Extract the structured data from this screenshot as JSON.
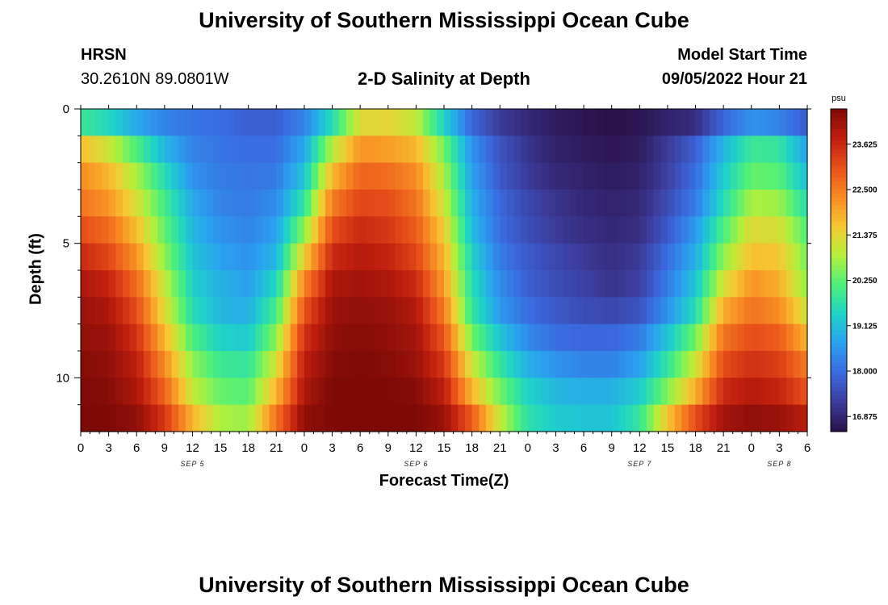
{
  "page": {
    "title": "University of Southern Mississippi Ocean Cube",
    "footer_title": "University of Southern Mississippi Ocean Cube",
    "station_name": "HRSN",
    "station_coords": "30.2610N  89.0801W",
    "subtitle": "2-D Salinity at Depth",
    "model_start_label": "Model Start Time",
    "model_start_value": "09/05/2022 Hour 21"
  },
  "chart_data": {
    "type": "heatmap",
    "title": "2-D Salinity at Depth",
    "xlabel": "Forecast Time(Z)",
    "ylabel": "Depth (ft)",
    "x_tick_labels": [
      "0",
      "3",
      "6",
      "9",
      "12",
      "15",
      "18",
      "21",
      "0",
      "3",
      "6",
      "9",
      "12",
      "15",
      "18",
      "21",
      "0",
      "3",
      "6",
      "9",
      "12",
      "15",
      "18",
      "21",
      "0",
      "3",
      "6"
    ],
    "x_hours_range": [
      0,
      78
    ],
    "day_labels": [
      {
        "label": "SEP 5",
        "hour": 12
      },
      {
        "label": "SEP 6",
        "hour": 36
      },
      {
        "label": "SEP 7",
        "hour": 60
      },
      {
        "label": "SEP 8",
        "hour": 75
      }
    ],
    "y_tick_labels": [
      "0",
      "5",
      "10"
    ],
    "y_tick_values": [
      0,
      5,
      10
    ],
    "ylim": [
      0,
      12
    ],
    "colorbar": {
      "unit": "psu",
      "tick_labels": [
        "23.625",
        "22.500",
        "21.375",
        "20.250",
        "19.125",
        "18.000",
        "16.875"
      ],
      "tick_values": [
        23.625,
        22.5,
        21.375,
        20.25,
        19.125,
        18.0,
        16.875
      ],
      "range": [
        16.5,
        24.5
      ],
      "colors": [
        "#2a1048",
        "#3c3c9c",
        "#3a6ae0",
        "#2aa0f0",
        "#1ed3c8",
        "#4cf07a",
        "#b4f03a",
        "#f6c832",
        "#f88a22",
        "#e8501a",
        "#c01e0e",
        "#7e0a06"
      ]
    },
    "layers_depth_ft": [
      0.5,
      1.5,
      2.5,
      3.5,
      4.5,
      5.5,
      6.5,
      7.5,
      8.5,
      9.5,
      10.5,
      11.5
    ],
    "time_hours": [
      0,
      3,
      6,
      9,
      12,
      15,
      18,
      21,
      24,
      27,
      30,
      33,
      36,
      39,
      42,
      45,
      48,
      51,
      54,
      57,
      60,
      63,
      66,
      69,
      72,
      75,
      78
    ],
    "salinity_psu": [
      [
        19.9,
        19.5,
        18.8,
        18.3,
        18.1,
        18.0,
        17.8,
        17.8,
        18.3,
        19.6,
        21.3,
        21.4,
        21.0,
        19.4,
        17.9,
        17.2,
        16.9,
        16.7,
        16.6,
        16.5,
        16.6,
        16.8,
        17.0,
        17.9,
        18.5,
        18.3,
        17.7
      ],
      [
        21.7,
        21.1,
        20.1,
        19.0,
        18.3,
        18.1,
        18.0,
        18.0,
        18.8,
        20.9,
        22.2,
        22.1,
        21.8,
        20.4,
        18.5,
        17.6,
        17.1,
        16.8,
        16.7,
        16.6,
        16.7,
        17.2,
        17.8,
        19.0,
        19.9,
        19.8,
        18.7
      ],
      [
        22.3,
        21.8,
        20.8,
        19.6,
        18.5,
        18.2,
        18.1,
        18.2,
        19.2,
        21.8,
        22.8,
        22.7,
        22.3,
        20.8,
        18.7,
        17.7,
        17.2,
        16.9,
        16.8,
        16.7,
        16.8,
        17.3,
        18.0,
        19.3,
        20.3,
        20.2,
        19.1
      ],
      [
        22.6,
        22.2,
        21.2,
        20.0,
        18.8,
        18.3,
        18.2,
        18.4,
        19.8,
        22.5,
        23.2,
        23.1,
        22.6,
        21.1,
        18.9,
        17.9,
        17.4,
        17.1,
        16.9,
        16.8,
        16.9,
        17.5,
        18.2,
        19.6,
        20.8,
        20.7,
        19.6
      ],
      [
        23.1,
        22.7,
        21.7,
        20.3,
        19.0,
        18.5,
        18.3,
        18.7,
        20.6,
        23.1,
        23.6,
        23.4,
        22.9,
        21.5,
        19.1,
        18.0,
        17.5,
        17.2,
        17.0,
        16.9,
        17.0,
        17.7,
        18.6,
        20.1,
        21.3,
        21.2,
        20.1
      ],
      [
        23.6,
        23.2,
        22.2,
        20.6,
        19.2,
        18.7,
        18.5,
        19.0,
        21.5,
        23.6,
        23.9,
        23.7,
        23.2,
        21.8,
        19.4,
        18.2,
        17.7,
        17.4,
        17.2,
        17.0,
        17.2,
        18.0,
        18.9,
        20.6,
        21.7,
        21.6,
        20.4
      ],
      [
        24.0,
        23.7,
        22.7,
        21.0,
        19.4,
        18.9,
        18.7,
        19.5,
        22.4,
        24.0,
        24.1,
        24.0,
        23.6,
        22.1,
        19.6,
        18.4,
        17.8,
        17.5,
        17.3,
        17.1,
        17.3,
        18.2,
        19.2,
        21.2,
        22.2,
        21.9,
        20.6
      ],
      [
        24.2,
        24.0,
        23.1,
        21.3,
        19.6,
        19.0,
        18.9,
        20.0,
        23.0,
        24.2,
        24.3,
        24.2,
        23.9,
        22.5,
        19.8,
        18.6,
        18.0,
        17.7,
        17.5,
        17.4,
        17.6,
        18.5,
        19.6,
        21.9,
        22.6,
        22.3,
        21.1
      ],
      [
        24.3,
        24.2,
        23.5,
        21.8,
        20.1,
        19.4,
        19.3,
        20.6,
        23.5,
        24.3,
        24.4,
        24.3,
        24.1,
        23.0,
        20.4,
        19.2,
        18.4,
        18.0,
        17.9,
        17.9,
        18.2,
        19.2,
        20.4,
        22.6,
        23.1,
        22.9,
        21.8
      ],
      [
        24.4,
        24.3,
        23.8,
        22.3,
        20.6,
        19.9,
        19.8,
        21.2,
        23.8,
        24.4,
        24.5,
        24.4,
        24.2,
        23.4,
        21.1,
        19.8,
        18.9,
        18.5,
        18.3,
        18.3,
        18.7,
        19.8,
        21.1,
        23.1,
        23.5,
        23.3,
        22.5
      ],
      [
        24.5,
        24.4,
        24.0,
        22.8,
        21.0,
        20.3,
        20.2,
        21.8,
        24.0,
        24.5,
        24.5,
        24.5,
        24.4,
        23.8,
        21.8,
        20.4,
        19.4,
        19.0,
        18.9,
        18.9,
        19.3,
        20.5,
        21.9,
        23.6,
        23.9,
        23.7,
        23.0
      ],
      [
        24.5,
        24.5,
        24.3,
        23.4,
        21.8,
        20.8,
        20.7,
        22.6,
        24.3,
        24.5,
        24.5,
        24.5,
        24.5,
        24.2,
        22.9,
        21.0,
        19.7,
        19.3,
        19.2,
        19.2,
        19.8,
        21.6,
        23.1,
        24.1,
        24.3,
        24.2,
        23.8
      ]
    ]
  }
}
